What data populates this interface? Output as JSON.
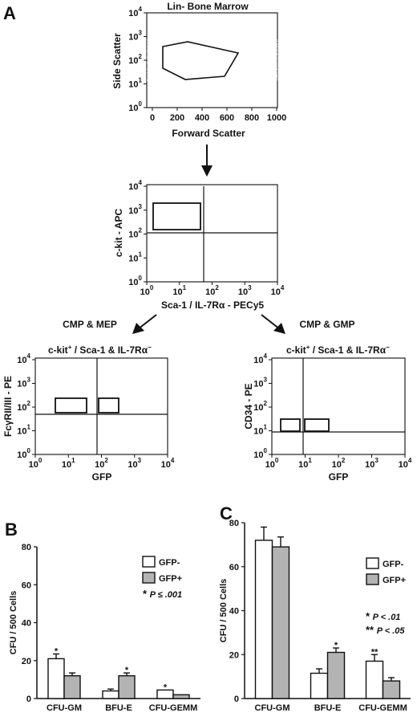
{
  "panels": {
    "A": "A",
    "B": "B",
    "C": "C"
  },
  "arrow_labels": {
    "left": "CMP & MEP",
    "right": "CMP & GMP"
  },
  "flow_plots": {
    "p1": {
      "title": "Lin- Bone Marrow",
      "xlabel": "Forward Scatter",
      "ylabel": "Side Scatter",
      "xticks": [
        "0",
        "200",
        "400",
        "600",
        "800",
        "1000"
      ],
      "yticks": [
        {
          "b": "10",
          "e": "0"
        },
        {
          "b": "10",
          "e": "1"
        },
        {
          "b": "10",
          "e": "2"
        },
        {
          "b": "10",
          "e": "3"
        },
        {
          "b": "10",
          "e": "4"
        }
      ]
    },
    "p2": {
      "title": "",
      "xlabel": "Sca-1 / IL-7Rα - PECy5",
      "ylabel": "c-kit - APC",
      "xticks": [
        {
          "b": "10",
          "e": "0"
        },
        {
          "b": "10",
          "e": "1"
        },
        {
          "b": "10",
          "e": "2"
        },
        {
          "b": "10",
          "e": "3"
        },
        {
          "b": "10",
          "e": "4"
        }
      ],
      "yticks": [
        {
          "b": "10",
          "e": "0"
        },
        {
          "b": "10",
          "e": "1"
        },
        {
          "b": "10",
          "e": "2"
        },
        {
          "b": "10",
          "e": "3"
        },
        {
          "b": "10",
          "e": "4"
        }
      ]
    },
    "p3": {
      "title_pre": "c-kit",
      "title_sup1": "+",
      "title_mid": " / Sca-1 & IL-7Rα",
      "title_sup2": "−",
      "xlabel": "GFP",
      "ylabel": "FcγRII/III - PE",
      "xticks": [
        {
          "b": "10",
          "e": "0"
        },
        {
          "b": "10",
          "e": "1"
        },
        {
          "b": "10",
          "e": "2"
        },
        {
          "b": "10",
          "e": "3"
        },
        {
          "b": "10",
          "e": "4"
        }
      ],
      "yticks": [
        {
          "b": "10",
          "e": "0"
        },
        {
          "b": "10",
          "e": "1"
        },
        {
          "b": "10",
          "e": "2"
        },
        {
          "b": "10",
          "e": "3"
        },
        {
          "b": "10",
          "e": "4"
        }
      ]
    },
    "p4": {
      "title_pre": "c-kit",
      "title_sup1": "+",
      "title_mid": " / Sca-1 & IL-7Rα",
      "title_sup2": "−",
      "xlabel": "GFP",
      "ylabel": "CD34 - PE",
      "xticks": [
        {
          "b": "10",
          "e": "0"
        },
        {
          "b": "10",
          "e": "1"
        },
        {
          "b": "10",
          "e": "2"
        },
        {
          "b": "10",
          "e": "3"
        },
        {
          "b": "10",
          "e": "4"
        }
      ],
      "yticks": [
        {
          "b": "10",
          "e": "0"
        },
        {
          "b": "10",
          "e": "1"
        },
        {
          "b": "10",
          "e": "2"
        },
        {
          "b": "10",
          "e": "3"
        },
        {
          "b": "10",
          "e": "4"
        }
      ]
    }
  },
  "chart_data": [
    {
      "type": "bar",
      "panel": "B",
      "categories": [
        "CFU-GM",
        "BFU-E",
        "CFU-GEMM"
      ],
      "series": [
        {
          "name": "GFP-",
          "values": [
            21,
            4,
            4.5
          ],
          "errors": [
            2.5,
            1,
            0
          ],
          "color": "#ffffff"
        },
        {
          "name": "GFP+",
          "values": [
            12,
            12,
            2
          ],
          "errors": [
            1.5,
            1.5,
            0
          ],
          "color": "#b3b3b3"
        }
      ],
      "significance": [
        {
          "category": "CFU-GM",
          "series": "GFP-",
          "mark": "*"
        },
        {
          "category": "BFU-E",
          "series": "GFP+",
          "mark": "*"
        },
        {
          "category": "CFU-GEMM",
          "series": "GFP-",
          "mark": "*"
        }
      ],
      "ylabel": "CFU / 500 Cells",
      "ylim": [
        0,
        80
      ],
      "yticks": [
        "0",
        "20",
        "40",
        "60",
        "80"
      ],
      "legend": "top-right",
      "notes": [
        {
          "star": "*",
          "text": "P ≤ .001"
        }
      ]
    },
    {
      "type": "bar",
      "panel": "C",
      "categories": [
        "CFU-GM",
        "BFU-E",
        "CFU-GEMM"
      ],
      "series": [
        {
          "name": "GFP-",
          "values": [
            72,
            11.5,
            17
          ],
          "errors": [
            6,
            2,
            3
          ],
          "color": "#ffffff"
        },
        {
          "name": "GFP+",
          "values": [
            69,
            21,
            8
          ],
          "errors": [
            4.5,
            2,
            1.5
          ],
          "color": "#b3b3b3"
        }
      ],
      "significance": [
        {
          "category": "BFU-E",
          "series": "GFP+",
          "mark": "*"
        },
        {
          "category": "CFU-GEMM",
          "series": "GFP-",
          "mark": "**"
        }
      ],
      "ylabel": "CFU / 500 Cells",
      "ylim": [
        0,
        80
      ],
      "yticks": [
        "0",
        "20",
        "40",
        "60",
        "80"
      ],
      "legend": "right",
      "notes": [
        {
          "star": "*",
          "text": "P < .01"
        },
        {
          "star": "**",
          "text": "P < .05"
        }
      ]
    }
  ]
}
